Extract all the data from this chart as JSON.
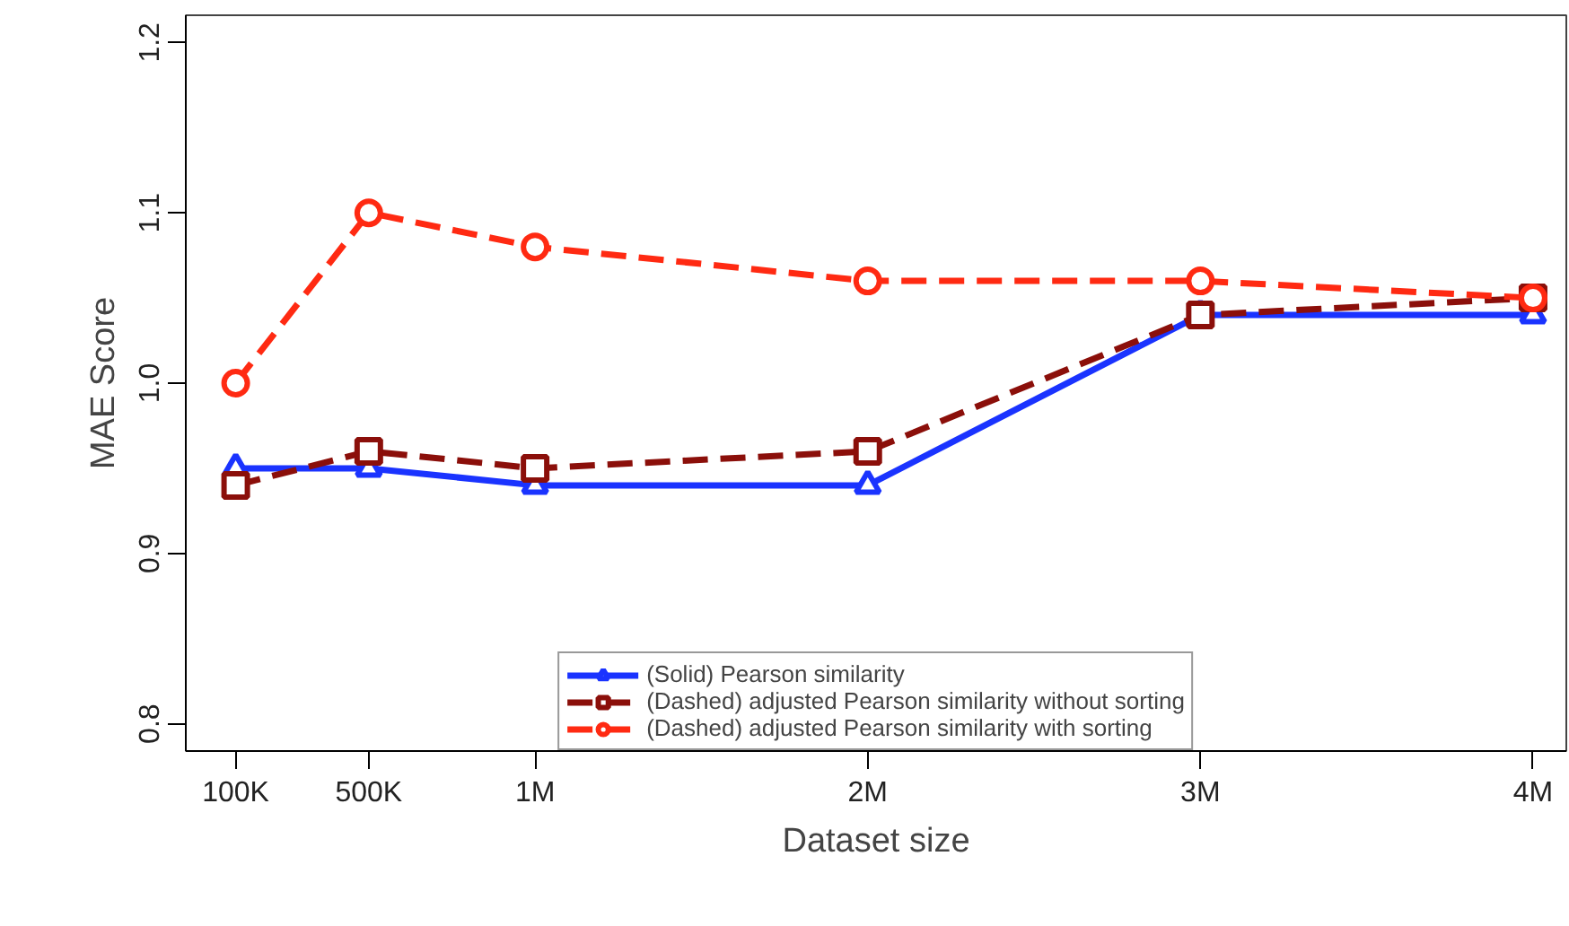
{
  "chart_data": {
    "type": "line",
    "xlabel": "Dataset size",
    "ylabel": "MAE Score",
    "x": [
      100000,
      500000,
      1000000,
      2000000,
      3000000,
      4000000
    ],
    "xlim": [
      -50000,
      4100000
    ],
    "xticks": [
      {
        "value": 100000,
        "label": "100K"
      },
      {
        "value": 500000,
        "label": "500K"
      },
      {
        "value": 1000000,
        "label": "1M"
      },
      {
        "value": 2000000,
        "label": "2M"
      },
      {
        "value": 3000000,
        "label": "3M"
      },
      {
        "value": 4000000,
        "label": "4M"
      }
    ],
    "ylim": [
      0.784,
      1.216
    ],
    "yticks": [
      {
        "value": 0.8,
        "label": "0.8"
      },
      {
        "value": 0.9,
        "label": "0.9"
      },
      {
        "value": 1.0,
        "label": "1.0"
      },
      {
        "value": 1.1,
        "label": "1.1"
      },
      {
        "value": 1.2,
        "label": "1.2"
      }
    ],
    "grid": false,
    "legend": "bottom",
    "series": [
      {
        "name": "(Solid) Pearson similarity",
        "color": "#1a33ff",
        "marker": "triangle",
        "line_style": "solid",
        "values": [
          0.95,
          0.95,
          0.94,
          0.94,
          1.04,
          1.04
        ]
      },
      {
        "name": "(Dashed) adjusted Pearson similarity without sorting",
        "color": "#8b0f0a",
        "marker": "square",
        "line_style": "dashed",
        "values": [
          0.94,
          0.96,
          0.95,
          0.96,
          1.04,
          1.05
        ]
      },
      {
        "name": "(Dashed) adjusted Pearson similarity with sorting",
        "color": "#ff2a12",
        "marker": "circle",
        "line_style": "dashed",
        "values": [
          1.0,
          1.1,
          1.08,
          1.06,
          1.06,
          1.05
        ]
      }
    ]
  }
}
